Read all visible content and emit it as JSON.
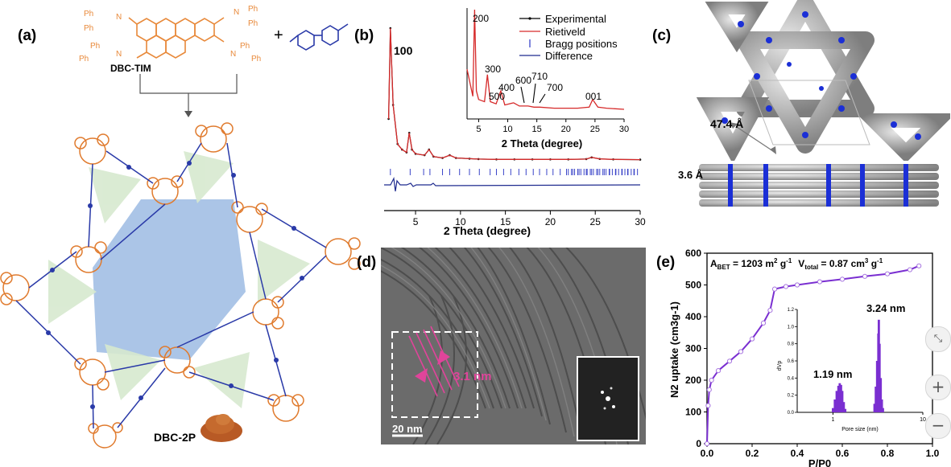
{
  "panels": {
    "a": {
      "label": "(a)",
      "reactant1": "DBC-TIM",
      "product": "DBC-2P",
      "ph_labels": [
        "Ph",
        "Ph",
        "Ph",
        "Ph",
        "Ph",
        "Ph",
        "Ph",
        "Ph"
      ],
      "n_labels": [
        "N",
        "N",
        "N",
        "N"
      ],
      "plus": "+"
    },
    "b": {
      "label": "(b)",
      "peak_100": "100",
      "legend": [
        "Experimental",
        "Rietiveld",
        "Bragg positions",
        "Difference"
      ],
      "xlabel": "2 Theta (degree)",
      "inset_xlabel": "2 Theta (degree)",
      "inset_peaks": [
        "200",
        "300",
        "400",
        "500",
        "600",
        "710",
        "700",
        "001"
      ]
    },
    "c": {
      "label": "(c)",
      "dim1": "47.4 Å",
      "dim2": "3.6 Å"
    },
    "d": {
      "label": "(d)",
      "spacing": "3.1 nm",
      "scalebar": "20 nm"
    },
    "e": {
      "label": "(e)",
      "abet_prefix": "A",
      "abet_sub": "BET",
      "abet_value": " = 1203 m",
      "abet_sup": "2",
      "abet_unit": " g",
      "abet_unit_sup": "-1",
      "vtotal_prefix": "V",
      "vtotal_sub": "total",
      "vtotal_value": " = 0.87 cm",
      "vtotal_sup": "3",
      "vtotal_unit": " g",
      "vtotal_unit_sup": "-1",
      "ylabel": "N2 uptake (cm3g-1)",
      "xlabel": "P/P0",
      "inset_xlabel": "Pore size (nm)",
      "inset_ylabel": "dVp",
      "pore1": "1.19 nm",
      "pore2": "3.24 nm"
    }
  },
  "controls": {
    "fit_icon": "collapse-icon",
    "zoom_in": "+",
    "zoom_out": "−"
  },
  "chart_data": [
    {
      "type": "line",
      "panel": "b",
      "series": [
        {
          "name": "Experimental",
          "x": [
            2.0,
            2.2,
            2.5,
            3.0,
            3.5,
            4.0,
            4.3,
            4.6,
            5.0,
            6.0,
            6.5,
            7.0,
            8.0,
            8.8,
            9.5,
            11,
            12,
            14,
            16,
            18,
            20,
            22,
            24,
            24.6,
            25.5,
            27,
            30
          ],
          "y": [
            30,
            95,
            40,
            12,
            8,
            6,
            20,
            8,
            5,
            4,
            8,
            3,
            2,
            4,
            2,
            1.5,
            1.2,
            1,
            1,
            1,
            1,
            1,
            1.2,
            2.4,
            1.3,
            1,
            0.8
          ]
        },
        {
          "name": "Rietiveld",
          "x": [
            2.0,
            2.2,
            2.5,
            3.0,
            3.5,
            4.0,
            4.3,
            4.6,
            5.0,
            6.0,
            6.5,
            7.0,
            8.0,
            8.8,
            9.5,
            11,
            12,
            14,
            16,
            18,
            20,
            22,
            24,
            24.6,
            25.5,
            27,
            30
          ],
          "y": [
            30,
            95,
            40,
            12,
            8,
            6,
            20,
            8,
            5,
            4,
            8,
            3,
            2,
            4,
            2,
            1.5,
            1.2,
            1,
            1,
            1,
            1,
            1,
            1.2,
            2.4,
            1.3,
            1,
            0.8
          ]
        }
      ],
      "xlabel": "2 Theta (degree)",
      "xlim": [
        1.5,
        30
      ],
      "xticks": [
        5,
        10,
        15,
        20,
        25,
        30
      ]
    },
    {
      "type": "line",
      "panel": "b-inset",
      "series": [
        {
          "name": "Experimental",
          "x": [
            3,
            4,
            4.3,
            4.6,
            5,
            6,
            6.5,
            7,
            8,
            8.8,
            9.5,
            11,
            12,
            13.5,
            14.5,
            15.5,
            18,
            20,
            22,
            24,
            24.6,
            25.5,
            27,
            30
          ],
          "y": [
            40,
            15,
            95,
            20,
            12,
            10,
            35,
            10,
            8,
            20,
            7,
            9,
            6,
            6,
            5,
            5,
            4,
            4,
            4,
            5,
            12,
            5,
            4,
            3
          ]
        }
      ],
      "xlabel": "2 Theta (degree)",
      "xlim": [
        3,
        30
      ],
      "xticks": [
        5,
        10,
        15,
        20,
        25,
        30
      ]
    },
    {
      "type": "line",
      "panel": "e",
      "series": [
        {
          "name": "isotherm",
          "x": [
            0.0,
            0.005,
            0.01,
            0.02,
            0.05,
            0.1,
            0.15,
            0.2,
            0.25,
            0.28,
            0.3,
            0.35,
            0.4,
            0.5,
            0.6,
            0.7,
            0.8,
            0.9,
            0.94
          ],
          "y": [
            0,
            120,
            170,
            200,
            230,
            260,
            290,
            330,
            380,
            420,
            487,
            495,
            500,
            510,
            518,
            527,
            535,
            548,
            560
          ]
        }
      ],
      "ylabel": "N2 uptake (cm3g-1)",
      "xlabel": "P/P0",
      "xlim": [
        0,
        1.0
      ],
      "ylim": [
        0,
        600
      ],
      "xticks": [
        0.0,
        0.2,
        0.4,
        0.6,
        0.8,
        1.0
      ],
      "yticks": [
        0,
        100,
        200,
        300,
        400,
        500,
        600
      ]
    },
    {
      "type": "bar",
      "panel": "e-inset",
      "x": [
        1.0,
        1.05,
        1.1,
        1.15,
        1.19,
        1.23,
        1.27,
        1.32,
        1.37,
        2.9,
        3.0,
        3.1,
        3.2,
        3.24,
        3.3,
        3.4,
        3.5,
        3.6
      ],
      "values": [
        0.05,
        0.15,
        0.25,
        0.31,
        0.34,
        0.32,
        0.25,
        0.12,
        0.04,
        0.1,
        0.3,
        0.6,
        0.92,
        1.08,
        0.8,
        0.4,
        0.15,
        0.05
      ],
      "xlabel": "Pore size (nm)",
      "ylabel": "dVp",
      "xscale": "log",
      "ylim": [
        0,
        1.2
      ],
      "yticks": [
        0.0,
        0.2,
        0.4,
        0.6,
        0.8,
        1.0,
        1.2
      ]
    }
  ]
}
